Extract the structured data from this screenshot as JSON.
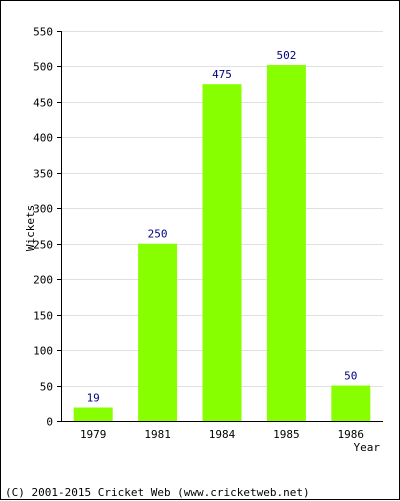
{
  "chart_data": {
    "type": "bar",
    "categories": [
      "1979",
      "1981",
      "1984",
      "1985",
      "1986"
    ],
    "series": [
      {
        "values": [
          19,
          250,
          475,
          502,
          50
        ]
      }
    ],
    "data_labels": [
      "19",
      "250",
      "475",
      "502",
      "50"
    ],
    "xlabel": "Year",
    "ylabel": "Wickets",
    "ylim": [
      0,
      550
    ],
    "yticks": [
      0,
      50,
      100,
      150,
      200,
      250,
      300,
      350,
      400,
      450,
      500,
      550
    ],
    "grid": true,
    "bar_color": "#88ff00",
    "label_color": "#000080"
  },
  "footer": {
    "copyright": "(C) 2001-2015 Cricket Web (www.cricketweb.net)"
  }
}
